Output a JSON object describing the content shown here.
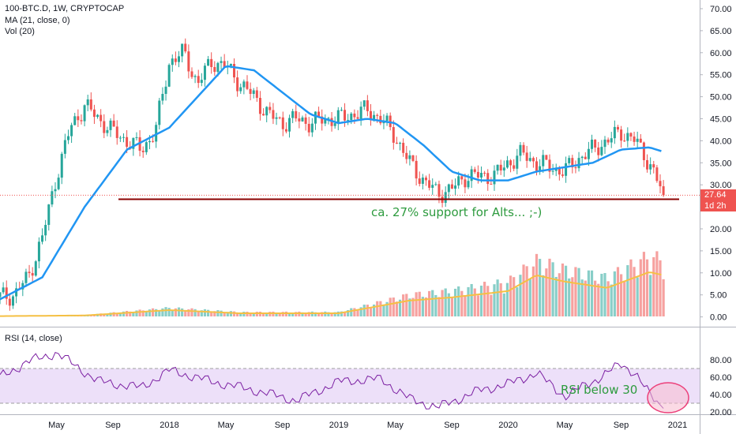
{
  "legend": {
    "symbol": "100-BTC.D, 1W, CRYPTOCAP",
    "ma": "MA (21, close, 0)",
    "vol": "Vol (20)",
    "rsi": "RSI (14, close)"
  },
  "price_tags": {
    "last": "27.64",
    "countdown": "1d 2h"
  },
  "annotations": {
    "support_text": "ca. 27% support for Alts... ;-)",
    "rsi_text": "RSI below 30"
  },
  "colors": {
    "up": "#26a69a",
    "down": "#ef5350",
    "ma": "#2196f3",
    "vol_ma": "#f5c044",
    "support_line": "#8b0000",
    "rsi_line": "#7b1fa2",
    "rsi_band": "#e9d8f8",
    "annotation_green": "#2e9b3f",
    "circle": "#f48fb1"
  },
  "chart_data": {
    "type": "candlestick",
    "price_axis": {
      "ticks": [
        "70.00",
        "65.00",
        "60.00",
        "55.00",
        "50.00",
        "45.00",
        "40.00",
        "35.00",
        "30.00",
        "25.00",
        "20.00",
        "15.00",
        "10.00",
        "5.00",
        "0.00"
      ]
    },
    "rsi_axis": {
      "ticks": [
        "80.00",
        "60.00",
        "40.00",
        "20.00"
      ],
      "upper_band": 70,
      "lower_band": 30
    },
    "time_axis": {
      "ticks": [
        "May",
        "Sep",
        "2018",
        "May",
        "Sep",
        "2019",
        "May",
        "Sep",
        "2020",
        "May",
        "Sep",
        "2021"
      ]
    },
    "support_level": 27,
    "last_close": 27.64,
    "close_series": [
      {
        "t": "2017-01",
        "v": 4.5
      },
      {
        "t": "2017-02",
        "v": 5
      },
      {
        "t": "2017-03",
        "v": 9
      },
      {
        "t": "2017-04",
        "v": 18
      },
      {
        "t": "2017-05",
        "v": 32
      },
      {
        "t": "2017-06",
        "v": 43
      },
      {
        "t": "2017-07",
        "v": 48
      },
      {
        "t": "2017-08",
        "v": 45
      },
      {
        "t": "2017-09",
        "v": 42
      },
      {
        "t": "2017-10",
        "v": 40
      },
      {
        "t": "2017-11",
        "v": 38
      },
      {
        "t": "2017-12",
        "v": 42
      },
      {
        "t": "2018-01",
        "v": 58
      },
      {
        "t": "2018-02",
        "v": 60
      },
      {
        "t": "2018-03",
        "v": 53
      },
      {
        "t": "2018-04",
        "v": 58
      },
      {
        "t": "2018-05",
        "v": 57
      },
      {
        "t": "2018-06",
        "v": 53
      },
      {
        "t": "2018-07",
        "v": 50
      },
      {
        "t": "2018-08",
        "v": 46
      },
      {
        "t": "2018-09",
        "v": 44
      },
      {
        "t": "2018-10",
        "v": 45
      },
      {
        "t": "2018-11",
        "v": 44
      },
      {
        "t": "2018-12",
        "v": 45
      },
      {
        "t": "2019-01",
        "v": 45
      },
      {
        "t": "2019-02",
        "v": 46
      },
      {
        "t": "2019-03",
        "v": 47
      },
      {
        "t": "2019-04",
        "v": 45
      },
      {
        "t": "2019-05",
        "v": 41
      },
      {
        "t": "2019-06",
        "v": 35
      },
      {
        "t": "2019-07",
        "v": 31
      },
      {
        "t": "2019-08",
        "v": 28
      },
      {
        "t": "2019-09",
        "v": 29
      },
      {
        "t": "2019-10",
        "v": 32
      },
      {
        "t": "2019-11",
        "v": 32
      },
      {
        "t": "2019-12",
        "v": 32
      },
      {
        "t": "2020-01",
        "v": 35
      },
      {
        "t": "2020-02",
        "v": 37
      },
      {
        "t": "2020-03",
        "v": 35
      },
      {
        "t": "2020-04",
        "v": 34
      },
      {
        "t": "2020-05",
        "v": 33
      },
      {
        "t": "2020-06",
        "v": 36
      },
      {
        "t": "2020-07",
        "v": 38
      },
      {
        "t": "2020-08",
        "v": 40
      },
      {
        "t": "2020-09",
        "v": 42
      },
      {
        "t": "2020-10",
        "v": 40
      },
      {
        "t": "2020-11",
        "v": 35
      },
      {
        "t": "2020-12",
        "v": 27.64
      }
    ],
    "ma_series": [
      {
        "t": "2017-01",
        "v": 4
      },
      {
        "t": "2017-04",
        "v": 9
      },
      {
        "t": "2017-07",
        "v": 25
      },
      {
        "t": "2017-10",
        "v": 38
      },
      {
        "t": "2018-01",
        "v": 43
      },
      {
        "t": "2018-03",
        "v": 50
      },
      {
        "t": "2018-05",
        "v": 57
      },
      {
        "t": "2018-07",
        "v": 56
      },
      {
        "t": "2018-09",
        "v": 51
      },
      {
        "t": "2018-11",
        "v": 46
      },
      {
        "t": "2019-01",
        "v": 44
      },
      {
        "t": "2019-03",
        "v": 45
      },
      {
        "t": "2019-05",
        "v": 44
      },
      {
        "t": "2019-07",
        "v": 39
      },
      {
        "t": "2019-09",
        "v": 33
      },
      {
        "t": "2019-11",
        "v": 31
      },
      {
        "t": "2020-01",
        "v": 31
      },
      {
        "t": "2020-03",
        "v": 33
      },
      {
        "t": "2020-05",
        "v": 34
      },
      {
        "t": "2020-07",
        "v": 35
      },
      {
        "t": "2020-09",
        "v": 38
      },
      {
        "t": "2020-11",
        "v": 38.5
      },
      {
        "t": "2020-12",
        "v": 37.5
      }
    ],
    "volume_series": [
      {
        "t": "2017-01",
        "v": 0.1
      },
      {
        "t": "2017-07",
        "v": 0.3
      },
      {
        "t": "2018-01",
        "v": 2
      },
      {
        "t": "2018-06",
        "v": 1
      },
      {
        "t": "2019-01",
        "v": 1
      },
      {
        "t": "2019-06",
        "v": 5
      },
      {
        "t": "2019-09",
        "v": 6
      },
      {
        "t": "2020-01",
        "v": 8
      },
      {
        "t": "2020-03",
        "v": 13
      },
      {
        "t": "2020-05",
        "v": 11
      },
      {
        "t": "2020-08",
        "v": 9
      },
      {
        "t": "2020-11",
        "v": 14
      },
      {
        "t": "2020-12",
        "v": 13
      }
    ],
    "rsi_series": [
      {
        "t": "2017-01",
        "v": 60
      },
      {
        "t": "2017-03",
        "v": 78
      },
      {
        "t": "2017-05",
        "v": 88
      },
      {
        "t": "2017-08",
        "v": 55
      },
      {
        "t": "2017-11",
        "v": 48
      },
      {
        "t": "2018-01",
        "v": 68
      },
      {
        "t": "2018-04",
        "v": 55
      },
      {
        "t": "2018-07",
        "v": 45
      },
      {
        "t": "2018-10",
        "v": 33
      },
      {
        "t": "2019-01",
        "v": 55
      },
      {
        "t": "2019-04",
        "v": 58
      },
      {
        "t": "2019-06",
        "v": 35
      },
      {
        "t": "2019-08",
        "v": 25
      },
      {
        "t": "2019-11",
        "v": 45
      },
      {
        "t": "2020-01",
        "v": 52
      },
      {
        "t": "2020-03",
        "v": 65
      },
      {
        "t": "2020-05",
        "v": 38
      },
      {
        "t": "2020-07",
        "v": 55
      },
      {
        "t": "2020-09",
        "v": 75
      },
      {
        "t": "2020-10",
        "v": 65
      },
      {
        "t": "2020-11",
        "v": 40
      },
      {
        "t": "2020-12",
        "v": 24
      }
    ]
  }
}
